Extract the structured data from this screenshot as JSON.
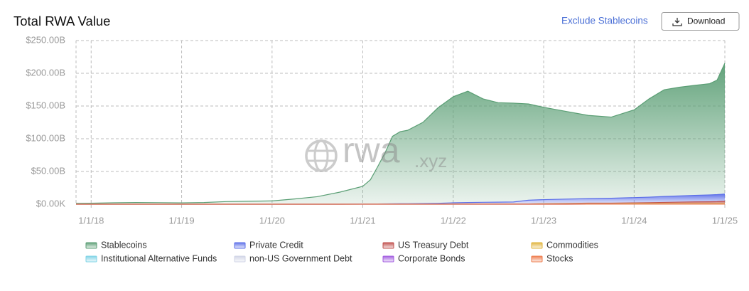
{
  "header": {
    "title": "Total RWA Value",
    "toggle": "Exclude Stablecoins",
    "download": "Download"
  },
  "watermark": {
    "main": "rwa",
    "suffix": ".xyz"
  },
  "chart_data": {
    "type": "stacked_area",
    "x": [
      "11/1/17",
      "1/1/18",
      "4/1/18",
      "7/1/18",
      "10/1/18",
      "1/1/19",
      "4/1/19",
      "7/1/19",
      "10/1/19",
      "1/1/20",
      "4/1/20",
      "7/1/20",
      "10/1/20",
      "1/1/21",
      "2/1/21",
      "3/1/21",
      "4/1/21",
      "5/1/21",
      "6/1/21",
      "7/1/21",
      "9/1/21",
      "11/1/21",
      "1/1/22",
      "3/1/22",
      "5/1/22",
      "7/1/22",
      "9/1/22",
      "11/1/22",
      "1/1/23",
      "4/1/23",
      "7/1/23",
      "10/1/23",
      "1/1/24",
      "3/1/24",
      "5/1/24",
      "7/1/24",
      "9/1/24",
      "11/1/24",
      "12/1/24",
      "1/1/25"
    ],
    "series": [
      {
        "name": "Stablecoins",
        "color": "#5a9e74",
        "values": [
          1.4,
          1.5,
          2.2,
          2.6,
          2.4,
          2.0,
          2.6,
          4.0,
          4.5,
          5.0,
          8.0,
          11.5,
          18.5,
          27,
          37,
          56,
          78,
          103,
          110,
          112,
          124,
          146,
          162,
          170,
          158,
          152,
          151,
          147,
          141,
          134,
          127,
          124,
          134,
          150,
          163,
          166,
          168,
          170,
          175,
          200
        ]
      },
      {
        "name": "Private Credit",
        "color": "#5b6ee8",
        "values": [
          0,
          0,
          0,
          0,
          0,
          0,
          0,
          0,
          0,
          0,
          0,
          0,
          0,
          0.2,
          0.3,
          0.4,
          0.5,
          0.6,
          0.7,
          0.8,
          1.0,
          1.3,
          1.6,
          2.0,
          2.3,
          2.5,
          2.8,
          5.5,
          6.0,
          6.5,
          7.0,
          7.5,
          8.0,
          8.5,
          9.0,
          9.5,
          10.0,
          10.5,
          10.8,
          11.0
        ]
      },
      {
        "name": "US Treasury Debt",
        "color": "#c0504d",
        "values": [
          0,
          0,
          0,
          0,
          0,
          0,
          0,
          0,
          0,
          0,
          0,
          0,
          0,
          0,
          0,
          0,
          0,
          0,
          0,
          0,
          0,
          0,
          0.1,
          0.1,
          0.1,
          0.1,
          0.1,
          0.1,
          0.3,
          0.6,
          0.8,
          0.8,
          0.8,
          1.0,
          1.5,
          1.9,
          2.2,
          2.4,
          2.6,
          3.2
        ]
      },
      {
        "name": "Commodities",
        "color": "#e0b33a",
        "values": [
          0,
          0,
          0,
          0,
          0,
          0,
          0,
          0,
          0,
          0,
          0,
          0,
          0,
          0.1,
          0.1,
          0.1,
          0.1,
          0.1,
          0.1,
          0.1,
          0.1,
          0.1,
          0.5,
          0.5,
          0.5,
          0.5,
          0.5,
          0.5,
          0.5,
          0.5,
          0.5,
          0.5,
          0.8,
          0.8,
          0.8,
          0.8,
          0.8,
          0.8,
          0.8,
          0.8
        ]
      },
      {
        "name": "Institutional Alternative Funds",
        "color": "#7fd3e6",
        "values": [
          0,
          0,
          0,
          0,
          0,
          0,
          0,
          0,
          0,
          0,
          0,
          0,
          0,
          0,
          0,
          0,
          0,
          0,
          0,
          0,
          0,
          0,
          0,
          0,
          0,
          0,
          0,
          0,
          0.2,
          0.2,
          0.2,
          0.2,
          0.2,
          0.2,
          0.2,
          0.2,
          0.2,
          0.2,
          0.2,
          0.2
        ]
      },
      {
        "name": "non-US Government Debt",
        "color": "#d0d4e6",
        "values": [
          0,
          0,
          0,
          0,
          0,
          0,
          0,
          0,
          0,
          0,
          0,
          0,
          0,
          0,
          0,
          0,
          0,
          0,
          0,
          0,
          0,
          0,
          0,
          0,
          0,
          0,
          0,
          0,
          0,
          0,
          0,
          0,
          0.1,
          0.1,
          0.1,
          0.1,
          0.1,
          0.1,
          0.1,
          0.1
        ]
      },
      {
        "name": "Corporate Bonds",
        "color": "#a25ce0",
        "values": [
          0,
          0,
          0,
          0,
          0,
          0,
          0,
          0,
          0,
          0,
          0,
          0,
          0,
          0,
          0,
          0,
          0,
          0,
          0,
          0,
          0,
          0,
          0,
          0,
          0,
          0,
          0,
          0,
          0,
          0,
          0,
          0,
          0.1,
          0.1,
          0.1,
          0.1,
          0.1,
          0.1,
          0.1,
          0.1
        ]
      },
      {
        "name": "Stocks",
        "color": "#ee7c4d",
        "values": [
          0,
          0,
          0,
          0,
          0,
          0,
          0,
          0,
          0,
          0,
          0,
          0,
          0,
          0,
          0,
          0,
          0,
          0,
          0,
          0,
          0,
          0,
          0,
          0,
          0,
          0,
          0,
          0,
          0,
          0,
          0.1,
          0.1,
          0.1,
          0.1,
          0.1,
          0.1,
          0.1,
          0.1,
          0.1,
          0.1
        ]
      }
    ],
    "xlim": [
      "11/1/17",
      "1/1/25"
    ],
    "xticks": [
      "1/1/18",
      "1/1/19",
      "1/1/20",
      "1/1/21",
      "1/1/22",
      "1/1/23",
      "1/1/24",
      "1/1/25"
    ],
    "ylim": [
      0,
      250
    ],
    "yticks": [
      {
        "value": 0,
        "label": "$0.00K"
      },
      {
        "value": 50,
        "label": "$50.00B"
      },
      {
        "value": 100,
        "label": "$100.00B"
      },
      {
        "value": 150,
        "label": "$150.00B"
      },
      {
        "value": 200,
        "label": "$200.00B"
      },
      {
        "value": 250,
        "label": "$250.00B"
      }
    ],
    "grid": true
  }
}
